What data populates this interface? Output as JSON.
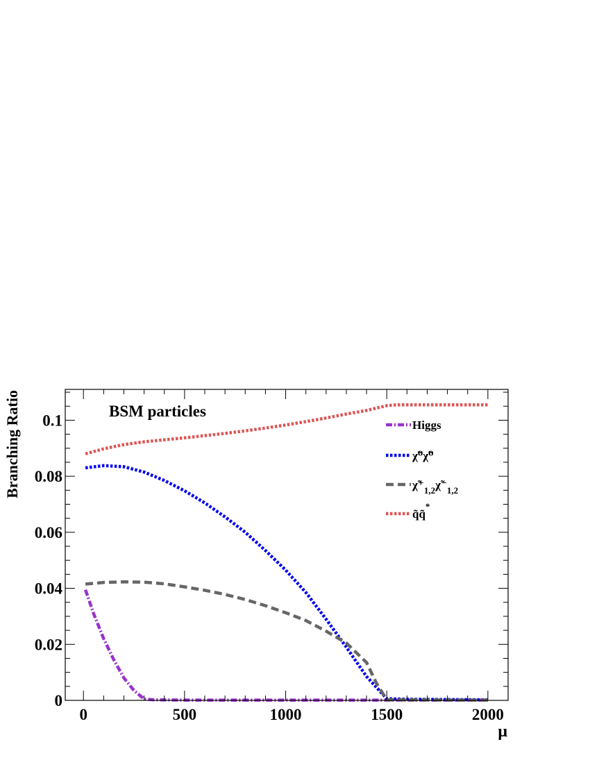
{
  "chart_data": {
    "type": "line",
    "title": "",
    "annotation": "BSM particles",
    "xlabel": "μ",
    "ylabel": "Branching Ratio",
    "xlim": [
      -90,
      2100
    ],
    "ylim": [
      0,
      0.111
    ],
    "xticks": [
      0,
      500,
      1000,
      1500,
      2000
    ],
    "xtick_labels": [
      "0",
      "500",
      "1000",
      "1500",
      "2000"
    ],
    "yticks": [
      0,
      0.02,
      0.04,
      0.06,
      0.08,
      0.1
    ],
    "ytick_labels": [
      "0",
      "0.02",
      "0.04",
      "0.06",
      "0.08",
      "0.1"
    ],
    "grid": false,
    "legend_position": "top-right",
    "series": [
      {
        "key": "higgs",
        "legend_main": "Higgs",
        "color": "#9933cc",
        "dash": "dashdot",
        "x": [
          10,
          50,
          100,
          150,
          200,
          250,
          300,
          350,
          500,
          1000,
          1500,
          2000
        ],
        "y": [
          0.0395,
          0.031,
          0.022,
          0.0145,
          0.008,
          0.0035,
          0.0005,
          0.0002,
          0.0001,
          0.0001,
          0.0001,
          0.0001
        ]
      },
      {
        "key": "neutralino",
        "legend_main": "χ̃⁰χ̃⁰",
        "color": "#0000ee",
        "dash": "dotted",
        "x": [
          10,
          100,
          200,
          300,
          400,
          500,
          600,
          700,
          800,
          900,
          1000,
          1100,
          1200,
          1300,
          1400,
          1500,
          1600,
          1800,
          2000
        ],
        "y": [
          0.083,
          0.0838,
          0.0834,
          0.0815,
          0.0785,
          0.0748,
          0.0705,
          0.0655,
          0.06,
          0.0535,
          0.0465,
          0.0385,
          0.029,
          0.019,
          0.0085,
          0.0006,
          0.0004,
          0.0003,
          0.0002
        ]
      },
      {
        "key": "chargino",
        "legend_main": "χ̃⁺",
        "legend_sub": "1,2",
        "legend_main2": "χ̃⁻",
        "legend_sub2": "1,2",
        "color": "#666666",
        "dash": "dashed",
        "x": [
          10,
          100,
          200,
          300,
          400,
          500,
          600,
          700,
          800,
          900,
          1000,
          1100,
          1200,
          1300,
          1400,
          1450,
          1500,
          1600,
          1800,
          2000
        ],
        "y": [
          0.0415,
          0.0421,
          0.0423,
          0.0422,
          0.0416,
          0.0405,
          0.0393,
          0.0378,
          0.036,
          0.0338,
          0.0313,
          0.0285,
          0.0247,
          0.0205,
          0.0135,
          0.006,
          0.0002,
          0.0002,
          0.0001,
          0.0001
        ]
      },
      {
        "key": "squark",
        "legend_main": "q̃q̃",
        "legend_sup": "*",
        "color": "#dd5555",
        "dash": "dotted",
        "x": [
          10,
          100,
          200,
          300,
          400,
          500,
          600,
          700,
          800,
          900,
          1000,
          1100,
          1200,
          1300,
          1400,
          1500,
          1550,
          1800,
          2000
        ],
        "y": [
          0.088,
          0.0898,
          0.0913,
          0.0923,
          0.093,
          0.0937,
          0.0945,
          0.0953,
          0.0962,
          0.0972,
          0.0983,
          0.0995,
          0.1008,
          0.1022,
          0.1035,
          0.1052,
          0.1055,
          0.1055,
          0.1055
        ]
      }
    ]
  }
}
